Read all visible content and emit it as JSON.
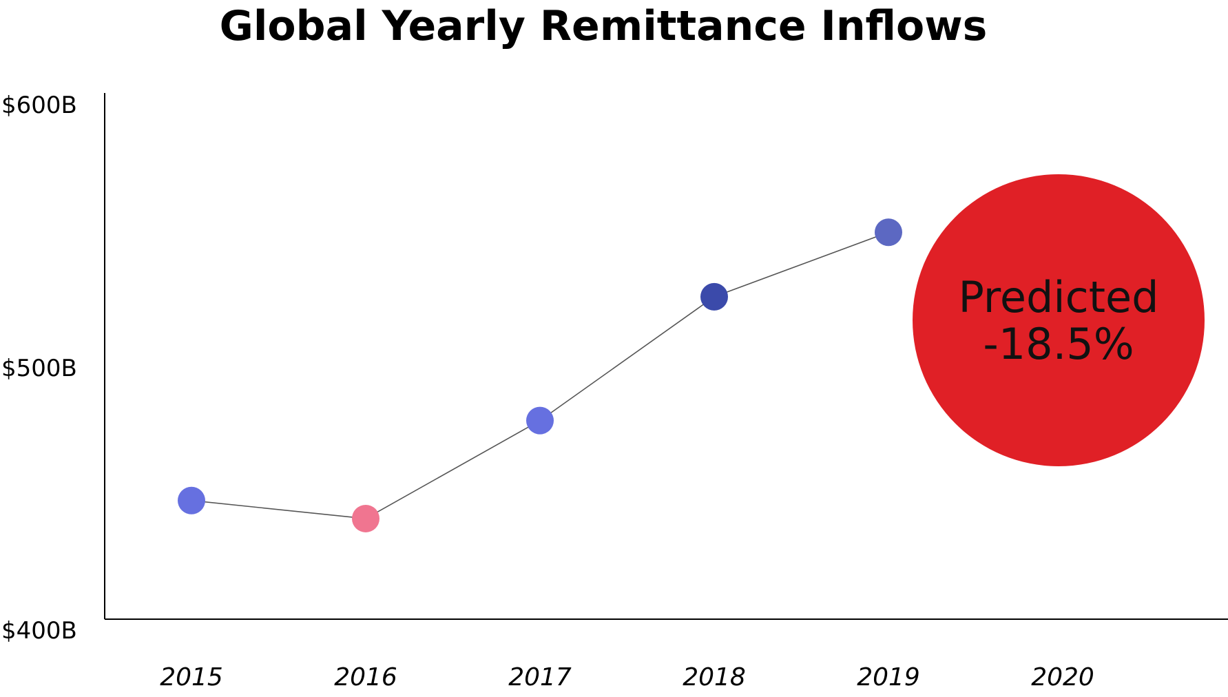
{
  "chart_data": {
    "type": "line",
    "title": "Global Yearly Remittance Inflows",
    "xlabel": "",
    "ylabel": "",
    "categories": [
      "2015",
      "2016",
      "2017",
      "2018",
      "2019",
      "2020"
    ],
    "y_tick_labels": [
      "$600B",
      "$500B",
      "$400B"
    ],
    "y_ticks": [
      600,
      500,
      400
    ],
    "ylim": [
      400,
      600
    ],
    "grid": false,
    "legend": "none",
    "series": [
      {
        "values": [
          446,
          439,
          477,
          525,
          550,
          null
        ],
        "point_colors": [
          "#6670e0",
          "#f07590",
          "#6670e0",
          "#3b4aaa",
          "#5c68c2",
          null
        ]
      }
    ],
    "line_color": "#555555",
    "annotation": {
      "category": "2020",
      "line1": "Predicted",
      "line2": "-18.5%",
      "color": "#e02026"
    }
  }
}
